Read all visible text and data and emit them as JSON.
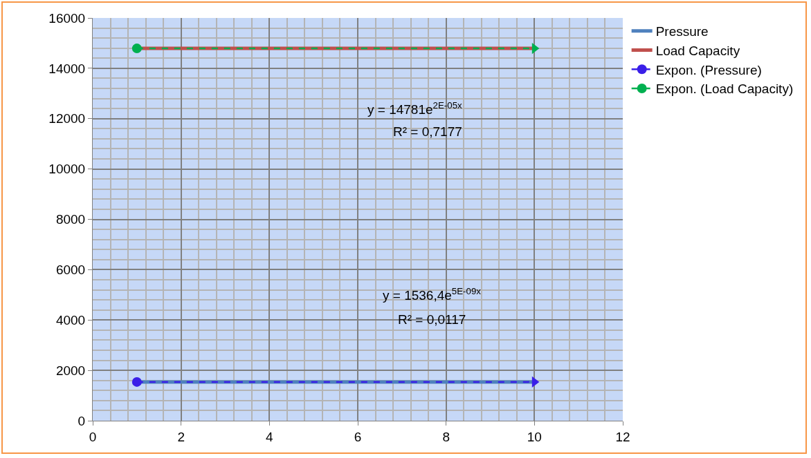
{
  "chart_data": {
    "type": "line",
    "x": [
      1,
      10
    ],
    "xlim": [
      0,
      12
    ],
    "xticks": [
      0,
      2,
      4,
      6,
      8,
      10,
      12
    ],
    "ylim": [
      0,
      16000
    ],
    "yticks": [
      0,
      2000,
      4000,
      6000,
      8000,
      10000,
      12000,
      14000,
      16000
    ],
    "grid": true,
    "legend": "right",
    "line_style": "solid",
    "marker": "none",
    "series": [
      {
        "name": "Pressure",
        "color": "#4f81bd",
        "values": [
          1540,
          1540
        ]
      },
      {
        "name": "Load Capacity",
        "color": "#c0504d",
        "values": [
          14790,
          14790
        ]
      },
      {
        "name": "Expon. (Pressure)",
        "color": "#3a1fe8",
        "type": "line",
        "line_style": "dashed",
        "marker": "circle",
        "values": [
          1540,
          1540
        ]
      },
      {
        "name": "Expon. (Load Capacity)",
        "color": "#00b050",
        "type": "line",
        "line_style": "dashed",
        "marker": "circle",
        "values": [
          14790,
          14790
        ]
      }
    ],
    "annotations": [
      "y = 14781e$^{2E-05x}$",
      "R² = 0,7177",
      "y = 1536,4e$^{5E-09x}$",
      "R² = 0,0117"
    ]
  }
}
